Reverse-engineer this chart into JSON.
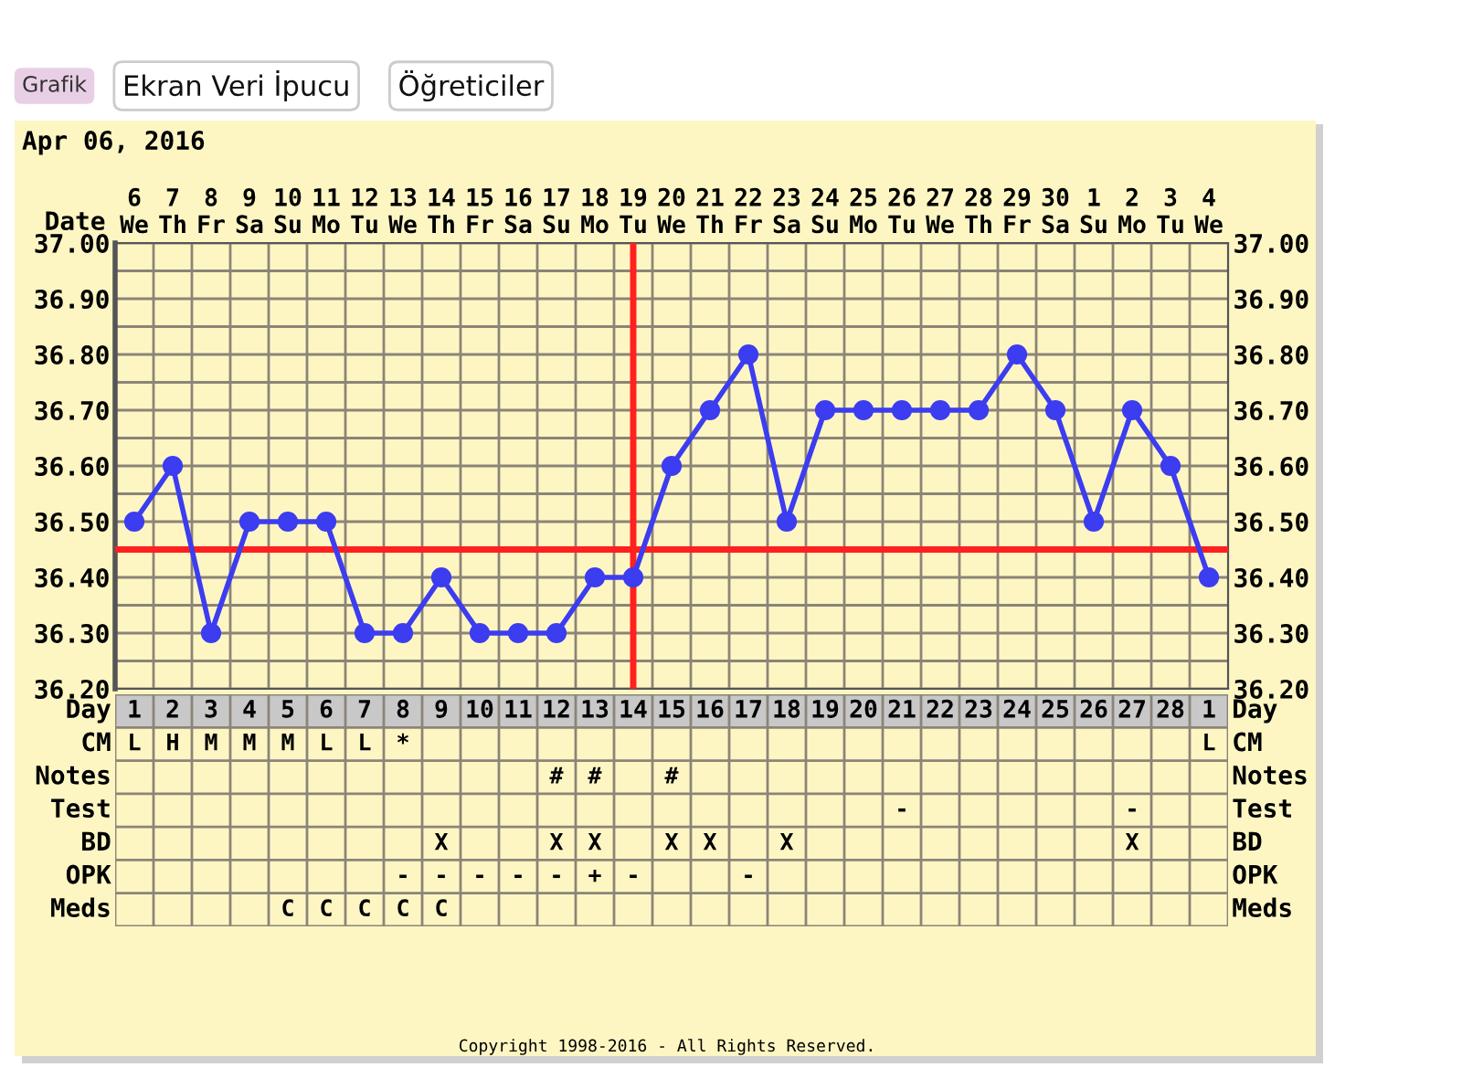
{
  "chart_data": [
    {
      "type": "line",
      "title": "Apr 06, 2016",
      "xlabel": "Date",
      "categories": [
        "6\nWe",
        "7\nTh",
        "8\nFr",
        "9\nSa",
        "10\nSu",
        "11\nMo",
        "12\nTu",
        "13\nWe",
        "14\nTh",
        "15\nFr",
        "16\nSa",
        "17\nSu",
        "18\nMo",
        "19\nTu",
        "20\nWe",
        "21\nTh",
        "22\nFr",
        "23\nSa",
        "24\nSu",
        "25\nMo",
        "26\nTu",
        "27\nWe",
        "28\nTh",
        "29\nFr",
        "30\nSa",
        "1\nSu",
        "2\nMo",
        "3\nTu",
        "4\nWe"
      ],
      "series": [
        {
          "color": "#3c3cf0",
          "values": [
            36.5,
            36.6,
            36.3,
            36.5,
            36.5,
            36.5,
            36.3,
            36.3,
            36.4,
            36.3,
            36.3,
            36.3,
            36.4,
            36.4,
            36.6,
            36.7,
            36.8,
            36.5,
            36.7,
            36.7,
            36.7,
            36.7,
            36.7,
            36.8,
            36.7,
            36.5,
            36.7,
            36.6,
            36.4
          ]
        }
      ],
      "ylim": [
        36.2,
        37.0
      ],
      "yticks": [
        {
          "value": 36.2,
          "label": "36.20"
        },
        {
          "value": 36.25,
          "label": null
        },
        {
          "value": 36.3,
          "label": "36.30"
        },
        {
          "value": 36.35,
          "label": null
        },
        {
          "value": 36.4,
          "label": "36.40"
        },
        {
          "value": 36.5,
          "label": "36.50"
        },
        {
          "value": 36.55,
          "label": null
        },
        {
          "value": 36.6,
          "label": "36.60"
        },
        {
          "value": 36.65,
          "label": null
        },
        {
          "value": 36.7,
          "label": "36.70"
        },
        {
          "value": 36.75,
          "label": null
        },
        {
          "value": 36.8,
          "label": "36.80"
        },
        {
          "value": 36.85,
          "label": null
        },
        {
          "value": 36.9,
          "label": "36.90"
        },
        {
          "value": 36.95,
          "label": null
        },
        {
          "value": 37.0,
          "label": "37.00"
        }
      ],
      "y2lim": [
        36.2,
        37.0
      ],
      "y2ticks": [
        {
          "value": 36.2,
          "label": "36.20"
        },
        {
          "value": 36.3,
          "label": "36.30"
        },
        {
          "value": 36.4,
          "label": "36.40"
        },
        {
          "value": 36.5,
          "label": "36.50"
        },
        {
          "value": 36.6,
          "label": "36.60"
        },
        {
          "value": 36.7,
          "label": "36.70"
        },
        {
          "value": 36.8,
          "label": "36.80"
        },
        {
          "value": 36.9,
          "label": "36.90"
        },
        {
          "value": 37.0,
          "label": "37.00"
        }
      ],
      "ref_lines": [
        {
          "axis": "y",
          "value": 36.45,
          "color": "#ff2020"
        },
        {
          "axis": "x",
          "value": "19\nTu",
          "color": "#ff2020"
        }
      ],
      "grid": true,
      "marker": "circle",
      "line_style": "solid",
      "annotations": [
        "Grafik",
        "Ekran Veri İpucu",
        "Öğreticiler",
        "Copyright 1998-2016 - All Rights Reserved."
      ]
    },
    {
      "type": "heatmap",
      "xlabel": "Day",
      "categories": [
        "1",
        "2",
        "3",
        "4",
        "5",
        "6",
        "7",
        "8",
        "9",
        "10",
        "11",
        "12",
        "13",
        "14",
        "15",
        "16",
        "17",
        "18",
        "19",
        "20",
        "21",
        "22",
        "23",
        "24",
        "25",
        "26",
        "27",
        "28",
        "1"
      ],
      "y_categories": [
        "CM",
        "Notes",
        "Test",
        "BD",
        "OPK",
        "Meds"
      ],
      "y2_categories": [
        "CM",
        "Notes",
        "Test",
        "BD",
        "OPK",
        "Meds"
      ],
      "cells": [
        [
          null,
          null,
          null,
          null,
          null,
          null,
          null,
          null,
          null,
          null,
          null,
          null,
          null,
          null,
          null,
          null,
          null,
          null,
          null,
          null,
          null,
          null,
          null,
          null,
          null,
          null,
          null,
          null,
          null
        ],
        [
          null,
          null,
          null,
          null,
          null,
          null,
          null,
          null,
          null,
          null,
          null,
          null,
          null,
          null,
          null,
          null,
          null,
          null,
          null,
          null,
          null,
          null,
          null,
          null,
          null,
          null,
          null,
          null,
          null
        ],
        [
          null,
          null,
          null,
          null,
          null,
          null,
          null,
          null,
          null,
          null,
          null,
          null,
          null,
          null,
          null,
          null,
          null,
          null,
          null,
          null,
          null,
          null,
          null,
          null,
          null,
          null,
          null,
          null,
          null
        ],
        [
          null,
          null,
          null,
          null,
          null,
          null,
          null,
          null,
          null,
          null,
          null,
          null,
          null,
          null,
          null,
          null,
          null,
          null,
          null,
          null,
          null,
          null,
          null,
          null,
          null,
          null,
          null,
          null,
          null
        ],
        [
          null,
          null,
          null,
          null,
          null,
          null,
          null,
          null,
          null,
          null,
          null,
          null,
          null,
          null,
          null,
          null,
          null,
          null,
          null,
          null,
          null,
          null,
          null,
          null,
          null,
          null,
          null,
          null,
          null
        ],
        [
          null,
          null,
          null,
          null,
          null,
          null,
          null,
          null,
          null,
          null,
          null,
          null,
          null,
          null,
          null,
          null,
          null,
          null,
          null,
          null,
          null,
          null,
          null,
          null,
          null,
          null,
          null,
          null,
          null
        ]
      ],
      "cell_labels": [
        [
          "L",
          "H",
          "M",
          "M",
          "M",
          "L",
          "L",
          "*",
          null,
          null,
          null,
          null,
          null,
          null,
          null,
          null,
          null,
          null,
          null,
          null,
          null,
          null,
          null,
          null,
          null,
          null,
          null,
          null,
          "L"
        ],
        [
          null,
          null,
          null,
          null,
          null,
          null,
          null,
          null,
          null,
          null,
          null,
          "#",
          "#",
          null,
          "#",
          null,
          null,
          null,
          null,
          null,
          null,
          null,
          null,
          null,
          null,
          null,
          null,
          null,
          null
        ],
        [
          null,
          null,
          null,
          null,
          null,
          null,
          null,
          null,
          null,
          null,
          null,
          null,
          null,
          null,
          null,
          null,
          null,
          null,
          null,
          null,
          "-",
          null,
          null,
          null,
          null,
          null,
          "-",
          null,
          null
        ],
        [
          null,
          null,
          null,
          null,
          null,
          null,
          null,
          null,
          "X",
          null,
          null,
          "X",
          "X",
          null,
          "X",
          "X",
          null,
          "X",
          null,
          null,
          null,
          null,
          null,
          null,
          null,
          null,
          "X",
          null,
          null
        ],
        [
          null,
          null,
          null,
          null,
          null,
          null,
          null,
          "-",
          "-",
          "-",
          "-",
          "-",
          "+",
          "-",
          null,
          null,
          "-",
          null,
          null,
          null,
          null,
          null,
          null,
          null,
          null,
          null,
          null,
          null,
          null
        ],
        [
          null,
          null,
          null,
          null,
          "C",
          "C",
          "C",
          "C",
          "C",
          null,
          null,
          null,
          null,
          null,
          null,
          null,
          null,
          null,
          null,
          null,
          null,
          null,
          null,
          null,
          null,
          null,
          null,
          null,
          null
        ]
      ]
    }
  ]
}
